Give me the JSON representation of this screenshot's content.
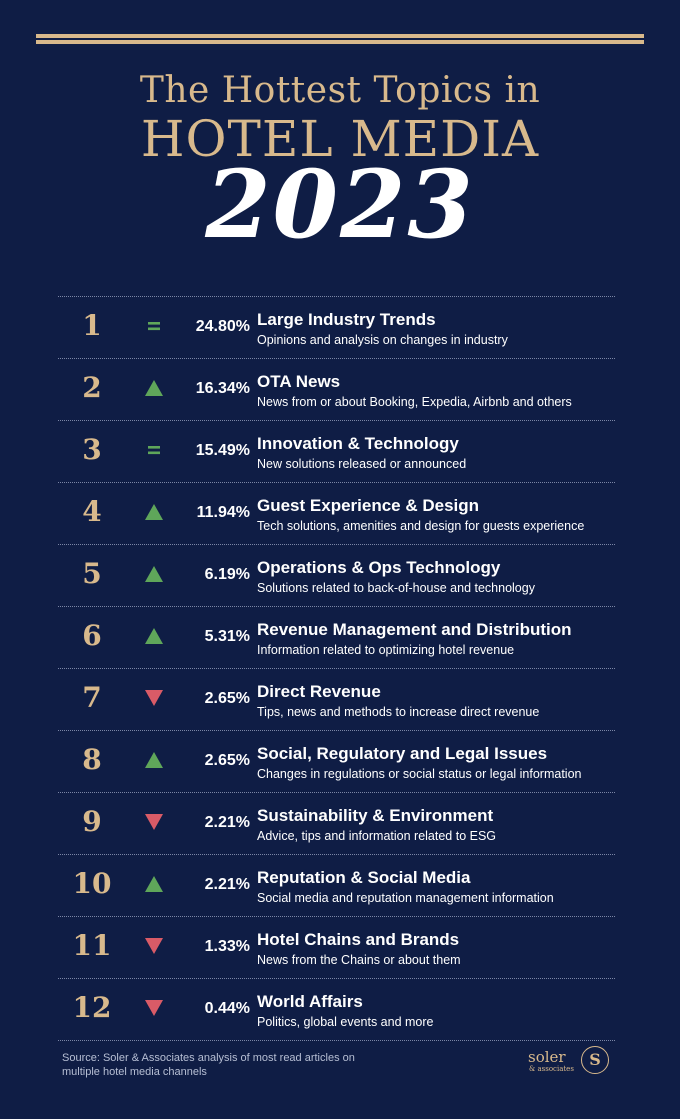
{
  "header": {
    "line1": "The Hottest Topics in",
    "line2": "HOTEL MEDIA",
    "line3": "2023"
  },
  "colors": {
    "background": "#0f1d45",
    "gold": "#d8b98c",
    "up": "#5fa65a",
    "down": "#d95b67",
    "same": "#5fa65a"
  },
  "rows": [
    {
      "rank": "1",
      "trend": "same",
      "percent": "24.80%",
      "topic": "Large Industry Trends",
      "description": "Opinions and analysis on changes in industry"
    },
    {
      "rank": "2",
      "trend": "up",
      "percent": "16.34%",
      "topic": "OTA News",
      "description": "News from or about Booking, Expedia, Airbnb and others"
    },
    {
      "rank": "3",
      "trend": "same",
      "percent": "15.49%",
      "topic": "Innovation & Technology",
      "description": "New solutions released or announced"
    },
    {
      "rank": "4",
      "trend": "up",
      "percent": "11.94%",
      "topic": "Guest Experience & Design",
      "description": "Tech solutions, amenities and design for guests experience"
    },
    {
      "rank": "5",
      "trend": "up",
      "percent": "6.19%",
      "topic": "Operations & Ops Technology",
      "description": "Solutions related to back-of-house and technology"
    },
    {
      "rank": "6",
      "trend": "up",
      "percent": "5.31%",
      "topic": "Revenue Management and Distribution",
      "description": "Information related to optimizing hotel revenue"
    },
    {
      "rank": "7",
      "trend": "down",
      "percent": "2.65%",
      "topic": "Direct Revenue",
      "description": "Tips, news and methods to increase direct revenue"
    },
    {
      "rank": "8",
      "trend": "up",
      "percent": "2.65%",
      "topic": "Social, Regulatory and Legal Issues",
      "description": "Changes in regulations or social status or legal information"
    },
    {
      "rank": "9",
      "trend": "down",
      "percent": "2.21%",
      "topic": "Sustainability & Environment",
      "description": "Advice, tips and information related to ESG"
    },
    {
      "rank": "10",
      "trend": "up",
      "percent": "2.21%",
      "topic": "Reputation & Social Media",
      "description": "Social media and reputation management information"
    },
    {
      "rank": "11",
      "trend": "down",
      "percent": "1.33%",
      "topic": "Hotel Chains and Brands",
      "description": "News from the Chains or about them"
    },
    {
      "rank": "12",
      "trend": "down",
      "percent": "0.44%",
      "topic": "World Affairs",
      "description": "Politics, global events and more"
    }
  ],
  "footer": {
    "source_line1": "Source: Soler & Associates analysis of most read articles on",
    "source_line2": "multiple hotel media channels",
    "logo_word": "soler",
    "logo_sub": "& associates",
    "logo_mark": "S"
  }
}
